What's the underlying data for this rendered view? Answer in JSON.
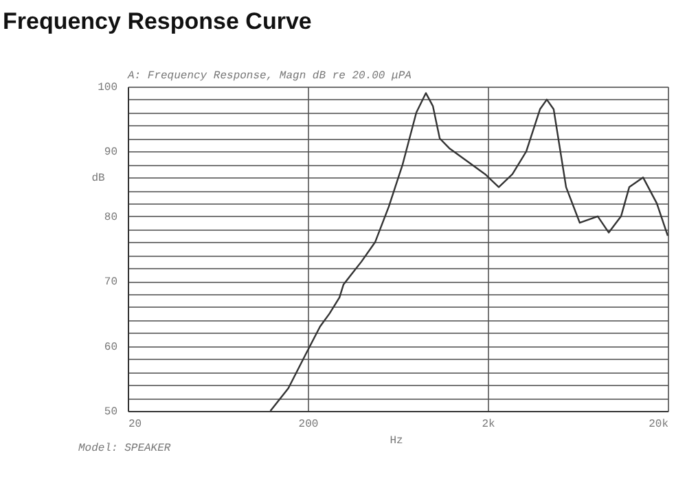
{
  "chart_data": {
    "type": "line",
    "title": "Frequency Response Curve",
    "subtitle": "A: Frequency Response, Magn dB re 20.00 μPA",
    "xlabel": "Hz",
    "ylabel": "dB",
    "annotations": [
      "Model: SPEAKER"
    ],
    "x": [
      124,
      156,
      197,
      234,
      264,
      300,
      316,
      397,
      473,
      564,
      673,
      802,
      906,
      991,
      1082,
      1222,
      1535,
      1932,
      2302,
      2742,
      3272,
      3900,
      4256,
      4646,
      5447,
      6490,
      8166,
      9396,
      11000,
      12220,
      14580,
      17380,
      20000
    ],
    "series": [
      {
        "color": "#333333",
        "values": [
          50,
          53.5,
          59,
          63,
          65,
          67.5,
          69.5,
          73,
          76,
          81.5,
          88,
          96,
          99,
          97,
          92,
          90.5,
          88.5,
          86.5,
          84.5,
          86.5,
          90,
          96.5,
          98,
          96.5,
          84.5,
          79,
          80,
          77.5,
          80,
          84.5,
          86,
          82,
          77
        ]
      }
    ],
    "xlim": [
      20,
      20000
    ],
    "ylim": [
      50,
      100
    ],
    "xticks": [
      20,
      {
        "value": 200,
        "label": "200"
      },
      {
        "value": 2000,
        "label": "2k"
      },
      {
        "value": 20000,
        "label": "20k"
      }
    ],
    "yticks": [
      50,
      {
        "value": 52,
        "label": null
      },
      {
        "value": 54,
        "label": null
      },
      {
        "value": 56,
        "label": null
      },
      {
        "value": 58,
        "label": null
      },
      60,
      {
        "value": 62,
        "label": null
      },
      {
        "value": 64,
        "label": null
      },
      {
        "value": 66,
        "label": null
      },
      {
        "value": 68,
        "label": null
      },
      70,
      {
        "value": 72,
        "label": null
      },
      {
        "value": 74,
        "label": null
      },
      {
        "value": 76,
        "label": null
      },
      {
        "value": 78,
        "label": null
      },
      80,
      {
        "value": 82,
        "label": null
      },
      {
        "value": 84,
        "label": null
      },
      {
        "value": 86,
        "label": null
      },
      {
        "value": 88,
        "label": null
      },
      90,
      {
        "value": 92,
        "label": null
      },
      {
        "value": 94,
        "label": null
      },
      {
        "value": 96,
        "label": null
      },
      {
        "value": 98,
        "label": null
      },
      100
    ],
    "log": "x",
    "grid": true,
    "marker": "none",
    "line_style": "solid"
  }
}
